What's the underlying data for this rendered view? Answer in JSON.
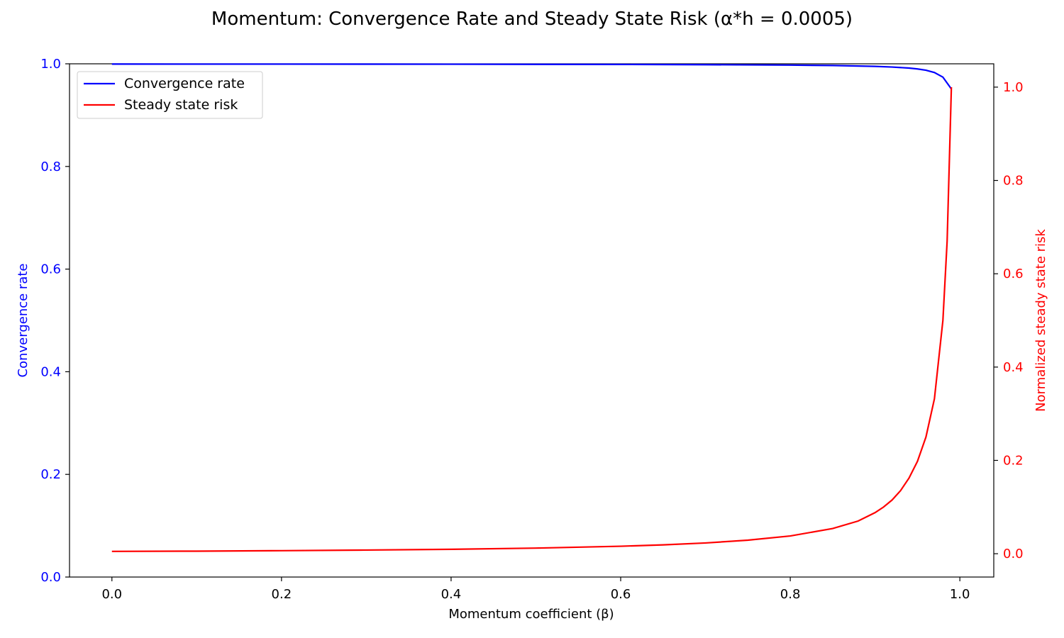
{
  "chart_data": {
    "type": "line",
    "title": "Momentum: Convergence Rate and Steady State Risk (α*h = 0.0005)",
    "xlabel": "Momentum coefficient (β)",
    "ylabel_left": "Convergence rate",
    "ylabel_right": "Normalized steady state risk",
    "xlim": [
      -0.05,
      1.04
    ],
    "ylim_left": [
      0.0,
      1.0
    ],
    "ylim_right": [
      -0.05,
      1.05
    ],
    "x_ticks": [
      "0.0",
      "0.2",
      "0.4",
      "0.6",
      "0.8",
      "1.0"
    ],
    "x_tick_values": [
      0.0,
      0.2,
      0.4,
      0.6,
      0.8,
      1.0
    ],
    "y_left_ticks": [
      "0.0",
      "0.2",
      "0.4",
      "0.6",
      "0.8",
      "1.0"
    ],
    "y_left_tick_values": [
      0.0,
      0.2,
      0.4,
      0.6,
      0.8,
      1.0
    ],
    "y_right_ticks": [
      "0.0",
      "0.2",
      "0.4",
      "0.6",
      "0.8",
      "1.0"
    ],
    "y_right_tick_values": [
      0.0,
      0.2,
      0.4,
      0.6,
      0.8,
      1.0
    ],
    "grid": false,
    "legend_position": "top-left",
    "colors": {
      "left_axis": "#0000ff",
      "right_axis": "#ff0000"
    },
    "series": [
      {
        "name": "Convergence rate",
        "axis": "left",
        "color": "#0000ff",
        "x": [
          0.0,
          0.1,
          0.2,
          0.3,
          0.4,
          0.5,
          0.6,
          0.7,
          0.8,
          0.85,
          0.9,
          0.92,
          0.94,
          0.95,
          0.96,
          0.97,
          0.98,
          0.99
        ],
        "y": [
          0.9995,
          0.9994,
          0.9994,
          0.9993,
          0.9992,
          0.999,
          0.9988,
          0.9983,
          0.9975,
          0.9967,
          0.995,
          0.9937,
          0.9917,
          0.99,
          0.9875,
          0.983,
          0.974,
          0.951
        ]
      },
      {
        "name": "Steady state risk",
        "axis": "right",
        "color": "#ff0000",
        "x": [
          0.0,
          0.1,
          0.2,
          0.3,
          0.4,
          0.5,
          0.6,
          0.65,
          0.7,
          0.75,
          0.8,
          0.85,
          0.88,
          0.9,
          0.91,
          0.92,
          0.93,
          0.94,
          0.95,
          0.96,
          0.97,
          0.98,
          0.985,
          0.99
        ],
        "y": [
          0.005,
          0.0055,
          0.0065,
          0.0078,
          0.0095,
          0.012,
          0.016,
          0.019,
          0.023,
          0.029,
          0.038,
          0.054,
          0.07,
          0.088,
          0.1,
          0.115,
          0.135,
          0.162,
          0.198,
          0.25,
          0.332,
          0.5,
          0.67,
          1.0
        ]
      }
    ]
  }
}
